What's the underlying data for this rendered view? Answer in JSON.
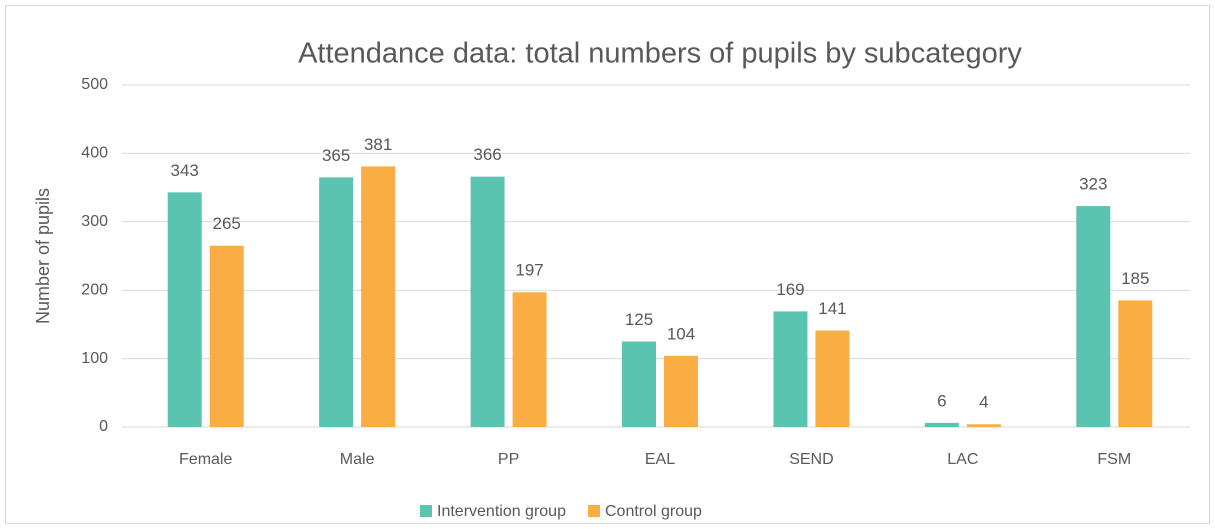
{
  "chart_data": {
    "type": "bar",
    "title": "Attendance data: total numbers of pupils by subcategory",
    "y_label": "Number of pupils",
    "categories": [
      "Female",
      "Male",
      "PP",
      "EAL",
      "SEND",
      "LAC",
      "FSM"
    ],
    "series": [
      {
        "name": "Intervention group",
        "color": "#5bc4b0",
        "values": [
          343,
          365,
          366,
          125,
          169,
          6,
          323
        ]
      },
      {
        "name": "Control group",
        "color": "#f9ad42",
        "values": [
          265,
          381,
          197,
          104,
          141,
          4,
          185
        ]
      }
    ],
    "ylim": [
      0,
      500
    ],
    "yticks": [
      0,
      100,
      200,
      300,
      400,
      500
    ],
    "grid": true,
    "legend": "bottom"
  }
}
